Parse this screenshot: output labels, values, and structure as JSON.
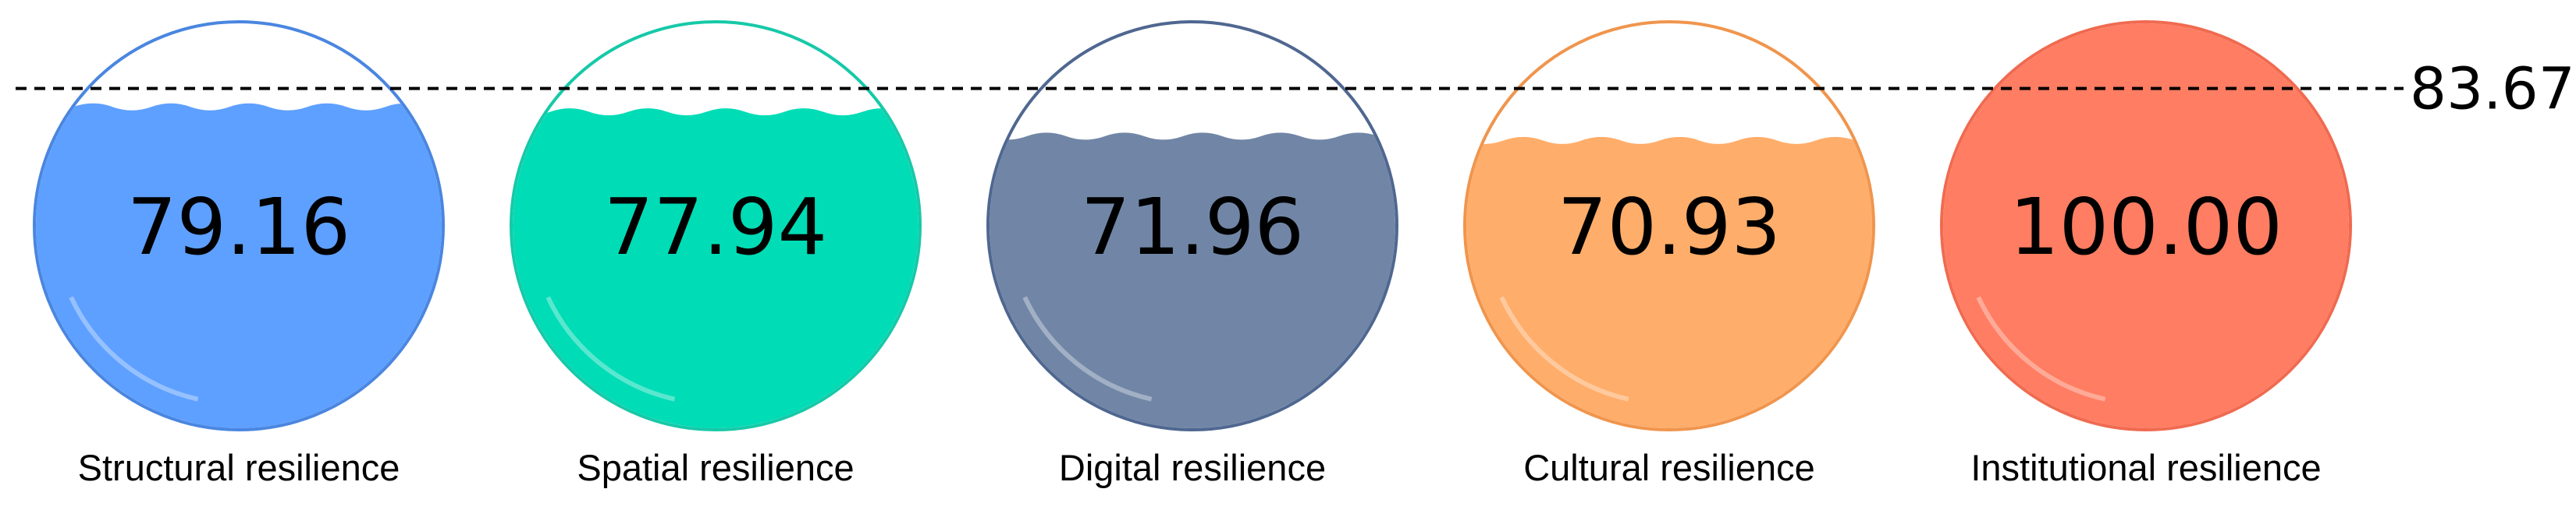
{
  "chart_data": {
    "type": "liquid-fill-gauge",
    "categories": [
      "Structural resilience",
      "Spatial resilience",
      "Digital resilience",
      "Cultural resilience",
      "Institutional resilience"
    ],
    "values": [
      79.16,
      77.94,
      71.96,
      70.93,
      100.0
    ],
    "value_labels": [
      "79.16",
      "77.94",
      "71.96",
      "70.93",
      "100.00"
    ],
    "colors": [
      "#5ea0ff",
      "#00dcb6",
      "#7186a6",
      "#ffad6a",
      "#ff7d62"
    ],
    "outline_colors": [
      "#4a86e0",
      "#16c9a8",
      "#4f6790",
      "#f0954d",
      "#f06a50"
    ],
    "ylim": [
      0,
      100
    ],
    "reference_line": {
      "value": 83.67,
      "label": "83.67"
    }
  }
}
